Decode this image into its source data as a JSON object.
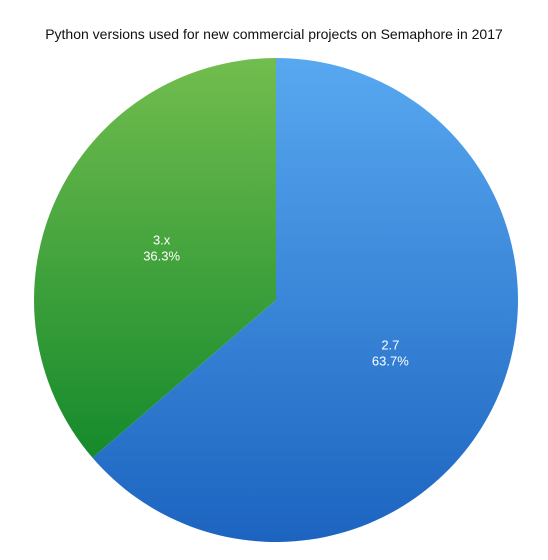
{
  "chart_data": {
    "type": "pie",
    "title": "Python versions used for new commercial projects on Semaphore in 2017",
    "start_angle_deg": 0,
    "direction": "clockwise",
    "slices": [
      {
        "name": "2.7",
        "value": 63.7,
        "percent_label": "63.7%",
        "color_light": "#58a8f0",
        "color_dark": "#1c64c0"
      },
      {
        "name": "3.x",
        "value": 36.3,
        "percent_label": "36.3%",
        "color_light": "#72bd4e",
        "color_dark": "#158a2c"
      }
    ]
  }
}
